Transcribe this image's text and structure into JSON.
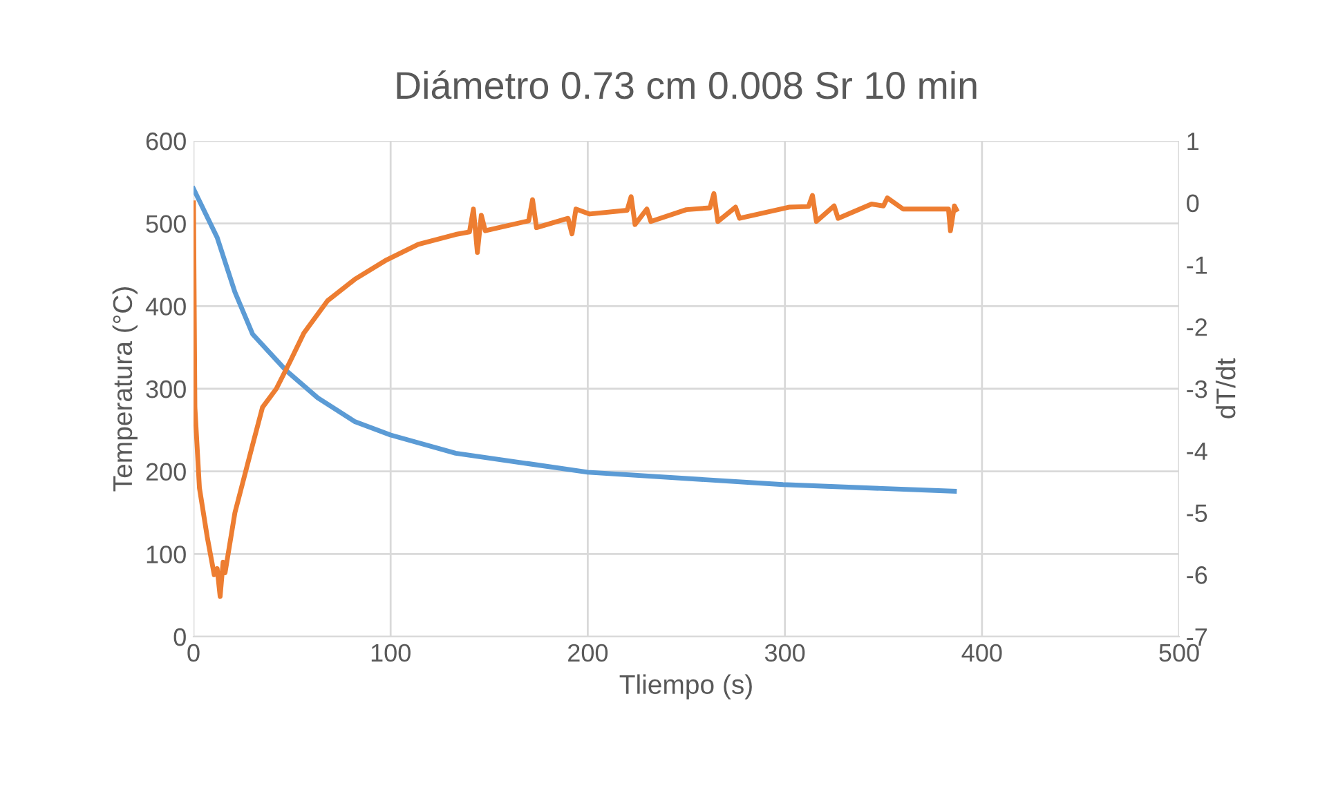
{
  "chart_data": {
    "type": "line",
    "title": "Diámetro 0.73 cm 0.008 Sr 10 min",
    "xlabel": "Tliempo (s)",
    "ylabel": "Temperatura (°C)",
    "y2label": "dT/dt",
    "xlim": [
      0,
      500
    ],
    "xticks": [
      0,
      100,
      200,
      300,
      400,
      500
    ],
    "ylim": [
      0,
      600
    ],
    "yticks": [
      0,
      100,
      200,
      300,
      400,
      500,
      600
    ],
    "y2lim": [
      -7,
      1
    ],
    "y2ticks": [
      {
        "value": -7,
        "label": "-7"
      },
      {
        "value": -6,
        "label": "-6"
      },
      {
        "value": -5,
        "label": "-5"
      },
      {
        "value": -4,
        "label": "-4"
      },
      {
        "value": -3,
        "label": "-3"
      },
      {
        "value": -2,
        "label": "-2"
      },
      {
        "value": -1,
        "label": "-1"
      },
      0,
      1
    ],
    "grid": true,
    "series": [
      {
        "color": "#5b9bd5",
        "x": [
          0,
          12,
          21,
          30,
          47,
          63,
          82,
          100,
          133,
          200,
          299,
          386
        ],
        "values": [
          542,
          483,
          417,
          366,
          322,
          289,
          260,
          244,
          222,
          199,
          184,
          176
        ]
      },
      {
        "color": "#ed7d31",
        "axis": "y2",
        "x": [
          0,
          0.7,
          3,
          7,
          10.5,
          12,
          13.5,
          15,
          16,
          21,
          30,
          35,
          42,
          49,
          56,
          68,
          82,
          98,
          114,
          133,
          140,
          142,
          144,
          146,
          148,
          170,
          172,
          174,
          190,
          192,
          194,
          201,
          220,
          222,
          224,
          230,
          232,
          250,
          262,
          264,
          266,
          275,
          277,
          302,
          312,
          314,
          316,
          325,
          327,
          344,
          350,
          352,
          360,
          383,
          384,
          386,
          387
        ],
        "values": [
          0,
          -3.3,
          -4.6,
          -5.4,
          -6.0,
          -5.9,
          -6.35,
          -5.8,
          -5.97,
          -5.0,
          -3.9,
          -3.3,
          -3.0,
          -2.56,
          -2.1,
          -1.58,
          -1.23,
          -0.92,
          -0.67,
          -0.51,
          -0.47,
          -0.1,
          -0.8,
          -0.2,
          -0.45,
          -0.29,
          0.05,
          -0.4,
          -0.25,
          -0.5,
          -0.1,
          -0.18,
          -0.12,
          0.1,
          -0.35,
          -0.1,
          -0.3,
          -0.11,
          -0.08,
          0.15,
          -0.3,
          -0.07,
          -0.25,
          -0.07,
          -0.06,
          0.12,
          -0.3,
          -0.05,
          -0.25,
          -0.02,
          -0.05,
          0.08,
          -0.1,
          -0.1,
          -0.45,
          -0.05,
          -0.11
        ]
      }
    ]
  }
}
